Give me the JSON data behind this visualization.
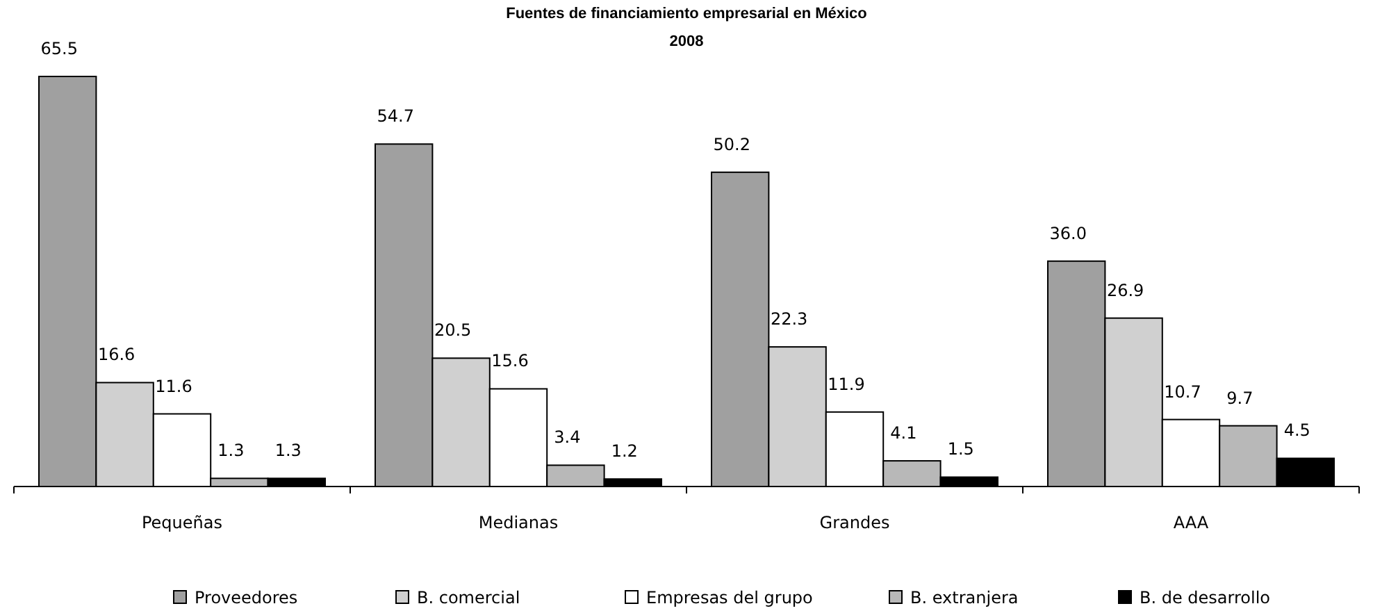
{
  "chart_data": {
    "type": "bar",
    "title": "Fuentes de financiamiento empresarial en México",
    "subtitle": "2008",
    "categories": [
      "Pequeñas",
      "Medianas",
      "Grandes",
      "AAA"
    ],
    "series": [
      {
        "name": "Proveedores",
        "color": "#a0a0a0",
        "values": [
          65.5,
          54.7,
          50.2,
          36.0
        ],
        "value_labels": [
          "65.5",
          "54.7",
          "50.2",
          "36.0"
        ]
      },
      {
        "name": "B. comercial",
        "color": "#d0d0d0",
        "values": [
          16.6,
          20.5,
          22.3,
          26.9
        ],
        "value_labels": [
          "16.6",
          "20.5",
          "22.3",
          "26.9"
        ]
      },
      {
        "name": "Empresas del grupo",
        "color": "#ffffff",
        "values": [
          11.6,
          15.6,
          11.9,
          10.7
        ],
        "value_labels": [
          "11.6",
          "15.6",
          "11.9",
          "10.7"
        ]
      },
      {
        "name": "B. extranjera",
        "color": "#b8b8b8",
        "values": [
          1.3,
          3.4,
          4.1,
          9.7
        ],
        "value_labels": [
          "1.3",
          "3.4",
          "4.1",
          "9.7"
        ]
      },
      {
        "name": "B. de desarrollo",
        "color": "#000000",
        "values": [
          1.3,
          1.2,
          1.5,
          4.5
        ],
        "value_labels": [
          "1.3",
          "1.2",
          "1.5",
          "4.5"
        ]
      }
    ],
    "legend": "bottom"
  }
}
